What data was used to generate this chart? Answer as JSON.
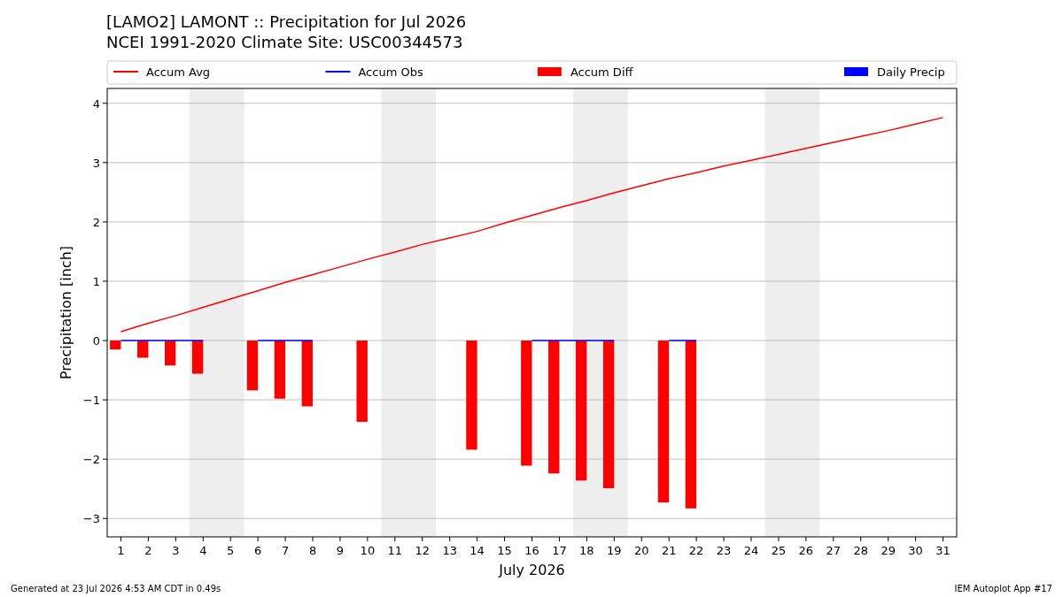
{
  "chart_data": {
    "type": "bar",
    "title": "[LAMO2] LAMONT :: Precipitation for Jul 2026",
    "subtitle": "NCEI 1991-2020 Climate Site: USC00344573",
    "xlabel": "July 2026",
    "ylabel": "Precipitation [inch]",
    "x": [
      1,
      2,
      3,
      4,
      5,
      6,
      7,
      8,
      9,
      10,
      11,
      12,
      13,
      14,
      15,
      16,
      17,
      18,
      19,
      20,
      21,
      22,
      23,
      24,
      25,
      26,
      27,
      28,
      29,
      30,
      31
    ],
    "series": [
      {
        "name": "Accum Avg",
        "type": "line",
        "color": "#ff0000",
        "values": [
          0.15,
          0.29,
          0.42,
          0.56,
          0.7,
          0.84,
          0.98,
          1.11,
          1.24,
          1.37,
          1.49,
          1.62,
          1.73,
          1.84,
          1.98,
          2.11,
          2.24,
          2.36,
          2.49,
          2.61,
          2.73,
          2.83,
          2.94,
          3.04,
          3.14,
          3.24,
          3.34,
          3.44,
          3.54,
          3.65,
          3.76
        ]
      },
      {
        "name": "Accum Obs",
        "type": "line",
        "color": "#0000ff",
        "values": [
          0,
          0,
          0,
          0,
          null,
          0,
          0,
          0,
          null,
          null,
          null,
          null,
          null,
          null,
          null,
          0,
          0,
          0,
          0,
          null,
          0,
          0,
          null,
          null,
          null,
          null,
          null,
          null,
          null,
          null,
          null
        ]
      },
      {
        "name": "Accum Diff",
        "color": "#ff0000",
        "values": [
          -0.15,
          -0.29,
          -0.42,
          -0.56,
          null,
          -0.84,
          -0.98,
          -1.11,
          null,
          -1.37,
          null,
          null,
          null,
          -1.84,
          null,
          -2.11,
          -2.24,
          -2.36,
          -2.49,
          null,
          -2.73,
          -2.83,
          null,
          null,
          null,
          null,
          null,
          null,
          null,
          null,
          null
        ]
      },
      {
        "name": "Daily Precip",
        "color": "#0000ff",
        "values": [
          0,
          0,
          0,
          0,
          null,
          0,
          0,
          0,
          null,
          0,
          null,
          null,
          null,
          0,
          null,
          0,
          0,
          0,
          0,
          null,
          0,
          0,
          null,
          null,
          null,
          null,
          null,
          null,
          null,
          null,
          null
        ]
      }
    ],
    "xlim": [
      0.5,
      31.5
    ],
    "xticks": [
      1,
      2,
      3,
      4,
      5,
      6,
      7,
      8,
      9,
      10,
      11,
      12,
      13,
      14,
      15,
      16,
      17,
      18,
      19,
      20,
      21,
      22,
      23,
      24,
      25,
      26,
      27,
      28,
      29,
      30,
      31
    ],
    "ylim": [
      -3.31,
      4.25
    ],
    "yticks": [
      {
        "value": -3,
        "label": "−3"
      },
      {
        "value": -2,
        "label": "−2"
      },
      {
        "value": -1,
        "label": "−1"
      },
      0,
      1,
      2,
      3,
      4
    ],
    "grid": "y",
    "legend": "top",
    "bands": [
      {
        "axis": "x",
        "from": 3.5,
        "to": 5.5,
        "color": "#eeeeee"
      },
      {
        "axis": "x",
        "from": 10.5,
        "to": 12.5,
        "color": "#eeeeee"
      },
      {
        "axis": "x",
        "from": 17.5,
        "to": 19.5,
        "color": "#eeeeee"
      },
      {
        "axis": "x",
        "from": 24.5,
        "to": 26.5,
        "color": "#eeeeee"
      }
    ],
    "annotations": [
      "Generated at 23 Jul 2026 4:53 AM CDT in 0.49s",
      "IEM Autoplot App #17"
    ]
  }
}
